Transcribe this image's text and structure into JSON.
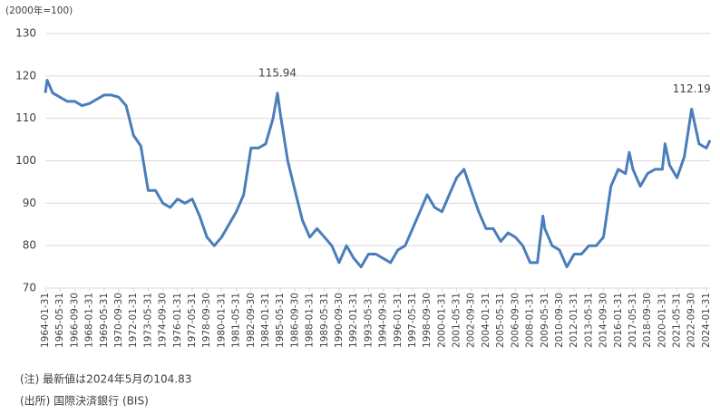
{
  "chart_data": {
    "type": "line",
    "ylabel": "(2000年=100)",
    "x": [
      "1964-01-31",
      "1964-03-31",
      "1964-09-30",
      "1965-05-31",
      "1966-01-31",
      "1966-09-30",
      "1967-05-31",
      "1968-01-31",
      "1968-09-30",
      "1969-05-31",
      "1970-01-31",
      "1970-09-30",
      "1971-05-31",
      "1972-01-31",
      "1972-09-30",
      "1973-05-31",
      "1974-01-31",
      "1974-09-30",
      "1975-05-31",
      "1976-01-31",
      "1976-09-30",
      "1977-05-31",
      "1978-01-31",
      "1978-09-30",
      "1979-05-31",
      "1980-01-31",
      "1980-09-30",
      "1981-05-31",
      "1982-01-31",
      "1982-09-30",
      "1983-05-31",
      "1984-01-31",
      "1984-09-30",
      "1985-02-28",
      "1985-05-31",
      "1986-01-31",
      "1986-09-30",
      "1987-05-31",
      "1988-01-31",
      "1988-09-30",
      "1989-05-31",
      "1990-01-31",
      "1990-09-30",
      "1991-05-31",
      "1992-01-31",
      "1992-09-30",
      "1993-05-31",
      "1994-01-31",
      "1994-09-30",
      "1995-05-31",
      "1996-01-31",
      "1996-09-30",
      "1997-05-31",
      "1998-01-31",
      "1998-09-30",
      "1999-05-31",
      "2000-01-31",
      "2000-09-30",
      "2001-05-31",
      "2002-01-31",
      "2002-09-30",
      "2003-05-31",
      "2004-01-31",
      "2004-09-30",
      "2005-05-31",
      "2006-01-31",
      "2006-09-30",
      "2007-05-31",
      "2008-01-31",
      "2008-09-30",
      "2009-03-31",
      "2009-05-31",
      "2010-01-31",
      "2010-09-30",
      "2011-05-31",
      "2012-01-31",
      "2012-09-30",
      "2013-05-31",
      "2014-01-31",
      "2014-09-30",
      "2015-05-31",
      "2016-01-31",
      "2016-09-30",
      "2017-01-31",
      "2017-05-31",
      "2018-01-31",
      "2018-09-30",
      "2019-05-31",
      "2020-01-31",
      "2020-04-30",
      "2020-09-30",
      "2021-05-31",
      "2022-01-31",
      "2022-09-30",
      "2023-05-31",
      "2024-01-31",
      "2024-05-31"
    ],
    "series": [
      {
        "color": "#4a7ebb",
        "values": [
          116,
          119,
          116,
          115,
          114,
          114,
          113,
          113.5,
          114.5,
          115.5,
          115.5,
          115,
          113,
          106,
          103.5,
          93,
          93,
          90,
          89,
          91,
          90,
          91,
          87,
          82,
          80,
          82,
          85,
          88,
          92,
          103,
          103,
          104,
          110,
          115.94,
          111,
          100,
          93,
          86,
          82,
          84,
          82,
          80,
          76,
          80,
          77,
          75,
          78,
          78,
          77,
          76,
          79,
          80,
          84,
          88,
          92,
          89,
          88,
          92,
          96,
          98,
          93,
          88,
          84,
          84,
          81,
          83,
          82,
          80,
          76,
          76,
          87,
          84,
          80,
          79,
          75,
          78,
          78,
          80,
          80,
          82,
          94,
          98,
          97,
          102,
          98,
          94,
          97,
          98,
          98,
          104,
          99,
          96,
          101,
          112.19,
          104,
          103,
          104.83
        ]
      }
    ],
    "xlim": [
      "1964-01-31",
      "2024-05-31"
    ],
    "xticks": [
      "1964-01-31",
      "1965-05-31",
      "1966-09-30",
      "1968-01-31",
      "1969-05-31",
      "1970-09-30",
      "1972-01-31",
      "1973-05-31",
      "1974-09-30",
      "1976-01-31",
      "1977-05-31",
      "1978-09-30",
      "1980-01-31",
      "1981-05-31",
      "1982-09-30",
      "1984-01-31",
      "1985-05-31",
      "1986-09-30",
      "1988-01-31",
      "1989-05-31",
      "1990-09-30",
      "1992-01-31",
      "1993-05-31",
      "1994-09-30",
      "1996-01-31",
      "1997-05-31",
      "1998-09-30",
      "2000-01-31",
      "2001-05-31",
      "2002-09-30",
      "2004-01-31",
      "2005-05-31",
      "2006-09-30",
      "2008-01-31",
      "2009-05-31",
      "2010-09-30",
      "2012-01-31",
      "2013-05-31",
      "2014-09-30",
      "2016-01-31",
      "2017-05-31",
      "2018-09-30",
      "2020-01-31",
      "2021-05-31",
      "2022-09-30",
      "2024-01-31"
    ],
    "ylim": [
      70,
      130
    ],
    "yticks": [
      70,
      80,
      90,
      100,
      110,
      120,
      130
    ],
    "grid": true,
    "annotations": [
      {
        "x": "1985-02-28",
        "y": 115.94,
        "label": "115.94"
      },
      {
        "x": "2022-09-30",
        "y": 112.19,
        "label": "112.19"
      }
    ],
    "notes": [
      "(注) 最新値は2024年5月の104.83",
      "(出所) 国際決済銀行 (BIS)"
    ]
  }
}
